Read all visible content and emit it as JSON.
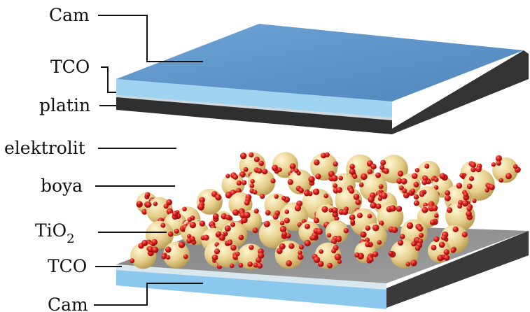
{
  "labels": {
    "cam_top": "Cam",
    "tco_top": "TCO",
    "platin": "platin",
    "elektrolit": "elektrolit",
    "boya": "boya",
    "tio2_main": "TiO",
    "tio2_sub": "2",
    "tco_bottom": "TCO",
    "cam_bottom": "Cam"
  },
  "colors": {
    "glass_top": "#5a93c9",
    "glass_side": "#3c3c3c",
    "tco": "#9fd3f2",
    "platin": "#2f2f2f",
    "substrate_top": "#8a8a8a",
    "bottom_glass": "#8cc8ee",
    "tio2_particle": "#e7d08e",
    "dye_molecule": "#d81e1e"
  }
}
